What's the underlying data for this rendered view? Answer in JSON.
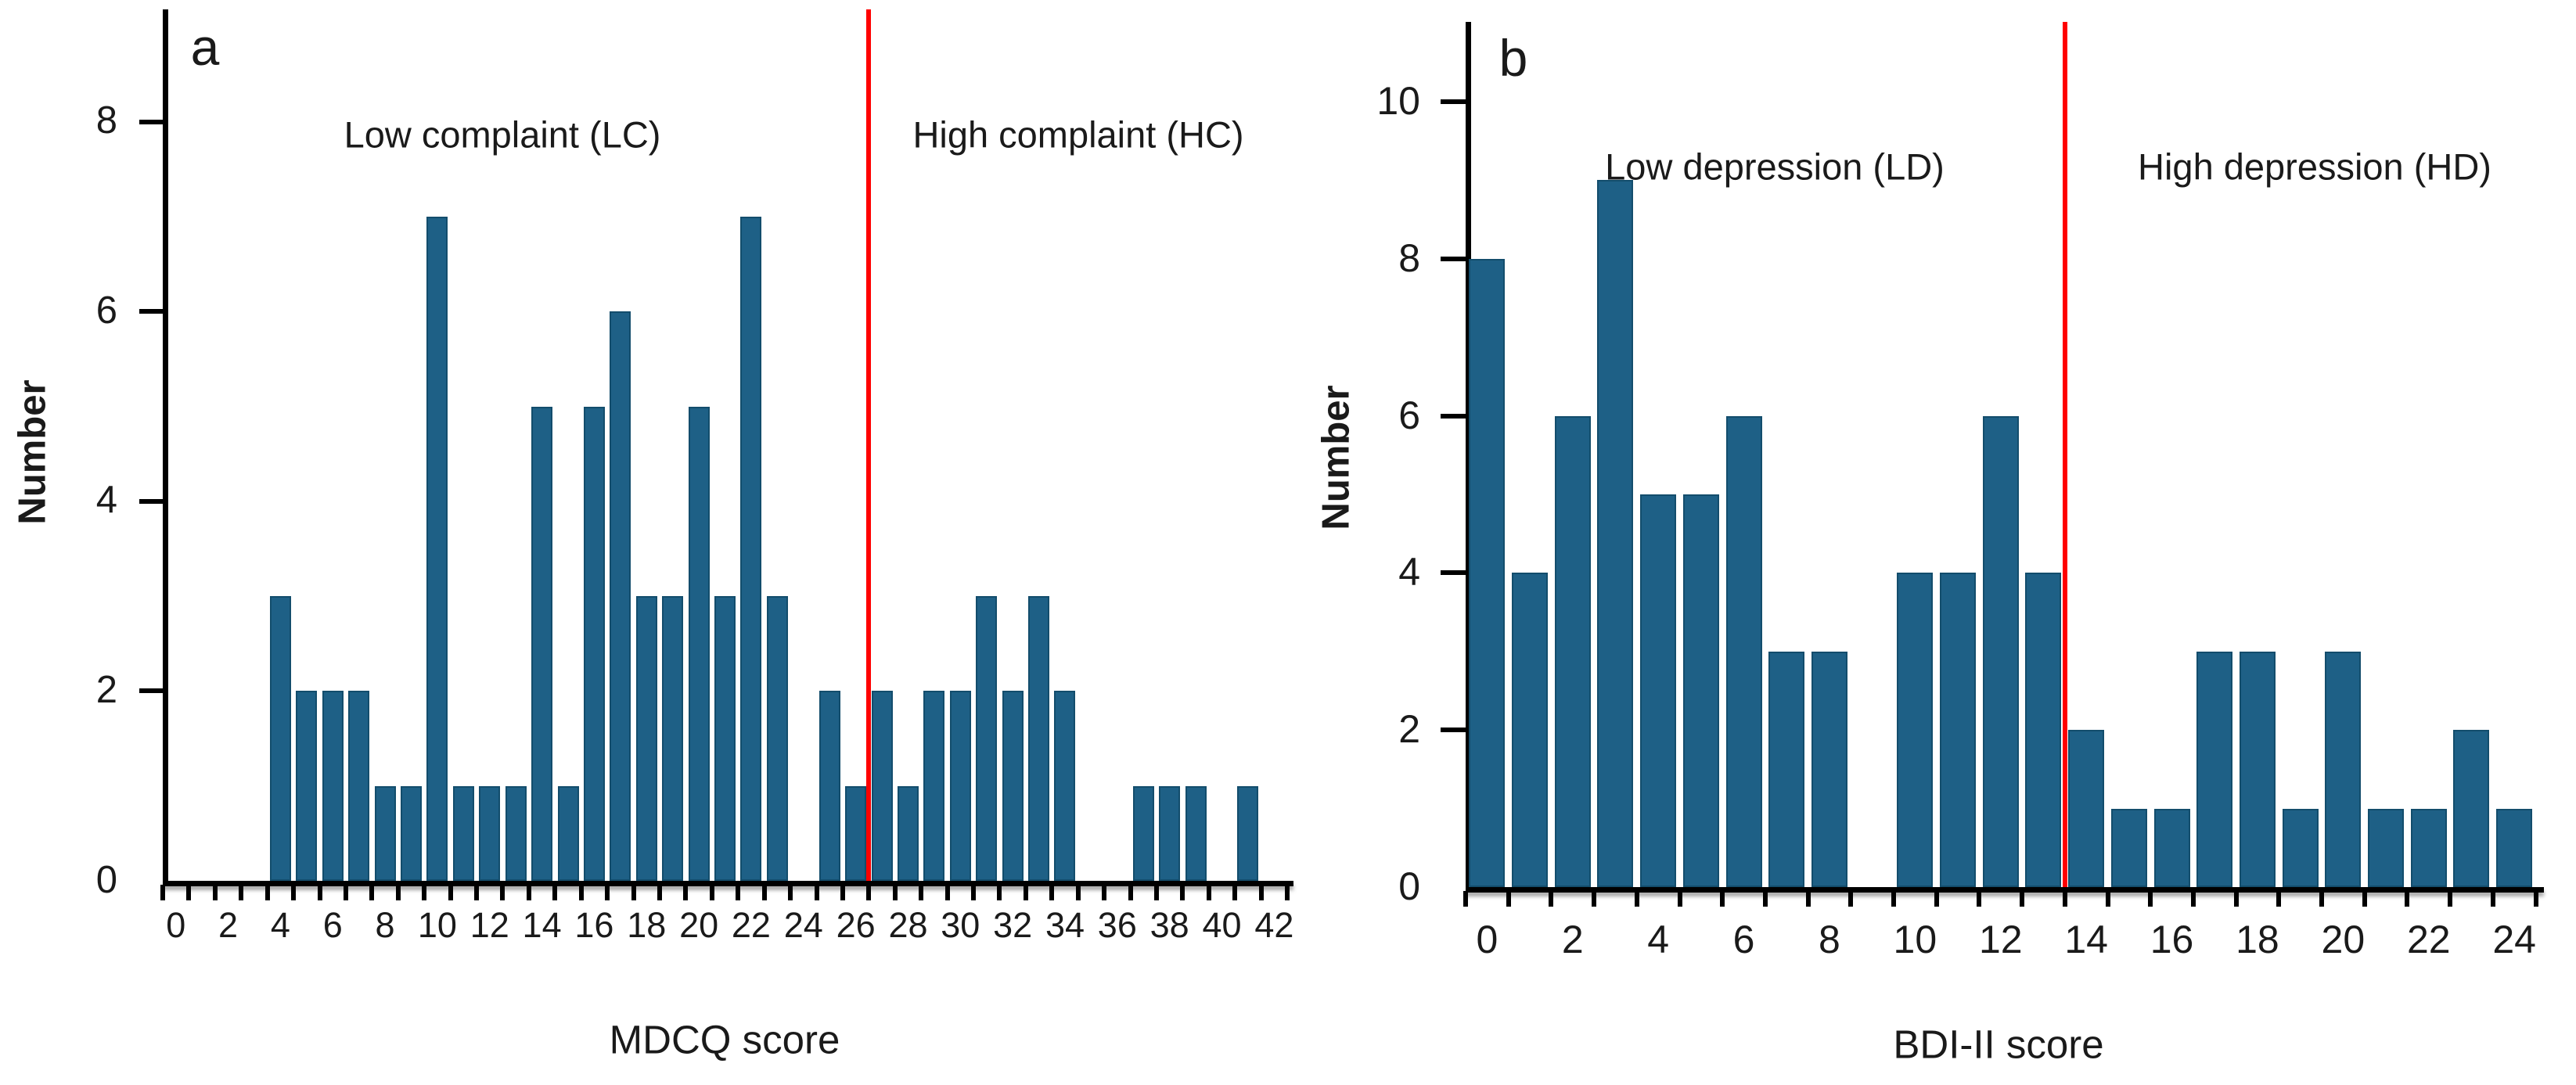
{
  "figure": {
    "description_colors": {
      "bar_fill": "#1e6086",
      "bar_edge": "#134d6c",
      "cutoff_line": "#ff0000",
      "axis": "#000000",
      "text": "#1a1a1a",
      "background": "#ffffff"
    }
  },
  "chart_data": [
    {
      "type": "bar",
      "panel_letter": "a",
      "title": "",
      "xlabel": "MDCQ score",
      "ylabel": "Number",
      "region_labels": {
        "left": "Low complaint (LC)",
        "right": "High complaint (HC)"
      },
      "categories": [
        0,
        1,
        2,
        3,
        4,
        5,
        6,
        7,
        8,
        9,
        10,
        11,
        12,
        13,
        14,
        15,
        16,
        17,
        18,
        19,
        20,
        21,
        22,
        23,
        24,
        25,
        26,
        27,
        28,
        29,
        30,
        31,
        32,
        33,
        34,
        35,
        36,
        37,
        38,
        39,
        40,
        41,
        42
      ],
      "values": [
        0,
        0,
        0,
        0,
        3,
        2,
        2,
        2,
        1,
        1,
        7,
        1,
        1,
        1,
        5,
        1,
        5,
        6,
        3,
        3,
        5,
        3,
        7,
        3,
        0,
        2,
        1,
        2,
        1,
        2,
        2,
        3,
        2,
        3,
        2,
        0,
        0,
        1,
        1,
        1,
        0,
        1,
        0
      ],
      "x_tick_labels": [
        0,
        2,
        4,
        6,
        8,
        10,
        12,
        14,
        16,
        18,
        20,
        22,
        24,
        26,
        28,
        30,
        32,
        34,
        36,
        38,
        40,
        42
      ],
      "y_ticks": [
        0,
        2,
        4,
        6,
        8
      ],
      "ylim": [
        0,
        9.2
      ],
      "xlim": [
        -0.5,
        42.5
      ],
      "cutoff_value": 26.5,
      "grid": "off",
      "legend": "none"
    },
    {
      "type": "bar",
      "panel_letter": "b",
      "title": "",
      "xlabel": "BDI-II score",
      "ylabel": "Number",
      "region_labels": {
        "left": "Low depression (LD)",
        "right": "High depression (HD)"
      },
      "categories": [
        0,
        1,
        2,
        3,
        4,
        5,
        6,
        7,
        8,
        9,
        10,
        11,
        12,
        13,
        14,
        15,
        16,
        17,
        18,
        19,
        20,
        21,
        22,
        23,
        24
      ],
      "values": [
        8,
        4,
        6,
        9,
        5,
        5,
        6,
        3,
        3,
        0,
        4,
        4,
        6,
        4,
        2,
        1,
        1,
        3,
        3,
        1,
        3,
        1,
        1,
        2,
        1
      ],
      "x_tick_labels": [
        0,
        2,
        4,
        6,
        8,
        10,
        12,
        14,
        16,
        18,
        20,
        22,
        24
      ],
      "y_ticks": [
        0,
        2,
        4,
        6,
        8,
        10
      ],
      "ylim": [
        0,
        11
      ],
      "xlim": [
        -0.5,
        24.5
      ],
      "cutoff_value": 13.5,
      "grid": "off",
      "legend": "none"
    }
  ]
}
